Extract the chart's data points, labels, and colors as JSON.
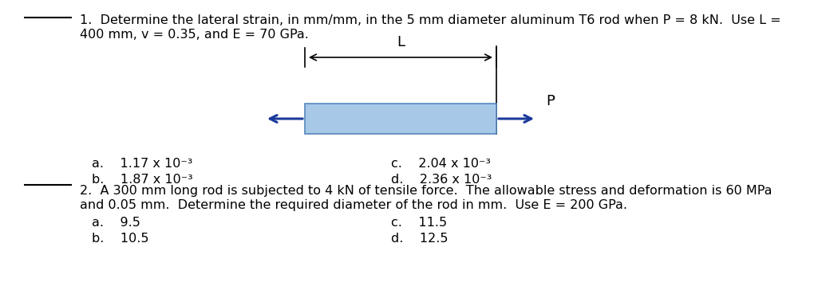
{
  "bg_color": "#ffffff",
  "line_color": "#000000",
  "rod_fill_color": "#a8c8e8",
  "rod_border_color": "#5588bb",
  "arrow_color": "#1a3a9a",
  "q1_line1": "1.  Determine the lateral strain, in mm/mm, in the 5 mm diameter aluminum T6 rod when P = 8 kN.  Use L =",
  "q1_line2": "400 mm, v = 0.35, and E = 70 GPa.",
  "q1_a": "a.    1.17 x 10⁻³",
  "q1_b": "b.    1.87 x 10⁻³",
  "q1_c": "c.    2.04 x 10⁻³",
  "q1_d": "d.    2.36 x 10⁻³",
  "q2_line1": "2.  A 300 mm long rod is subjected to 4 kN of tensile force.  The allowable stress and deformation is 60 MPa",
  "q2_line2": "and 0.05 mm.  Determine the required diameter of the rod in mm.  Use E = 200 GPa.",
  "q2_a": "a.    9.5",
  "q2_b": "b.    10.5",
  "q2_c": "c.    11.5",
  "q2_d": "d.    12.5",
  "label_L": "L",
  "label_P": "P",
  "figsize": [
    10.25,
    3.74
  ],
  "dpi": 100
}
